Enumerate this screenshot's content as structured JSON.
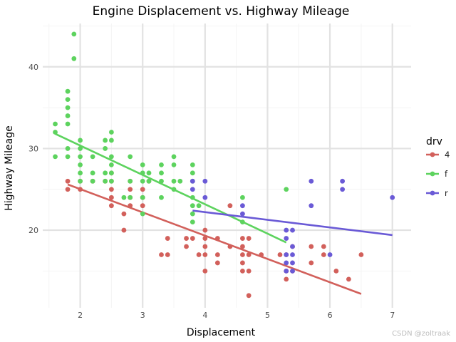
{
  "chart_data": {
    "type": "scatter",
    "title": "Engine Displacement vs. Highway Mileage",
    "xlabel": "Displacement",
    "ylabel": "Highway Mileage",
    "xlim": [
      1.4,
      7.3
    ],
    "ylim": [
      10.5,
      45.3
    ],
    "x_ticks": [
      2,
      3,
      4,
      5,
      6,
      7
    ],
    "y_ticks": [
      20,
      30,
      40
    ],
    "grid": true,
    "legend": {
      "title": "drv",
      "position": "right"
    },
    "series": [
      {
        "name": "4",
        "color": "#d2605b",
        "trend": {
          "x": [
            1.8,
            6.5
          ],
          "y": [
            25.6,
            12.2
          ]
        },
        "points": [
          [
            1.8,
            26
          ],
          [
            1.8,
            25
          ],
          [
            2.0,
            26
          ],
          [
            2.0,
            25
          ],
          [
            2.2,
            26
          ],
          [
            2.4,
            26
          ],
          [
            2.5,
            27
          ],
          [
            2.5,
            26
          ],
          [
            2.5,
            25
          ],
          [
            2.5,
            24
          ],
          [
            2.5,
            23
          ],
          [
            2.7,
            22
          ],
          [
            2.7,
            20
          ],
          [
            2.8,
            26
          ],
          [
            2.8,
            25
          ],
          [
            2.8,
            24
          ],
          [
            2.8,
            23
          ],
          [
            3.0,
            25
          ],
          [
            3.0,
            24
          ],
          [
            3.0,
            23
          ],
          [
            3.1,
            26
          ],
          [
            3.3,
            17
          ],
          [
            3.4,
            19
          ],
          [
            3.4,
            17
          ],
          [
            3.7,
            19
          ],
          [
            3.7,
            18
          ],
          [
            3.8,
            19
          ],
          [
            3.9,
            17
          ],
          [
            4.0,
            20
          ],
          [
            4.0,
            19
          ],
          [
            4.0,
            18
          ],
          [
            4.0,
            17
          ],
          [
            4.0,
            15
          ],
          [
            4.2,
            19
          ],
          [
            4.2,
            17
          ],
          [
            4.2,
            16
          ],
          [
            4.4,
            23
          ],
          [
            4.4,
            18
          ],
          [
            4.6,
            19
          ],
          [
            4.6,
            18
          ],
          [
            4.6,
            17
          ],
          [
            4.6,
            16
          ],
          [
            4.6,
            15
          ],
          [
            4.7,
            19
          ],
          [
            4.7,
            17
          ],
          [
            4.7,
            15
          ],
          [
            4.7,
            12
          ],
          [
            4.9,
            17
          ],
          [
            5.2,
            17
          ],
          [
            5.3,
            17
          ],
          [
            5.3,
            15
          ],
          [
            5.3,
            14
          ],
          [
            5.4,
            18
          ],
          [
            5.4,
            15
          ],
          [
            5.7,
            18
          ],
          [
            5.7,
            16
          ],
          [
            5.9,
            18
          ],
          [
            5.9,
            17
          ],
          [
            6.1,
            15
          ],
          [
            6.3,
            14
          ],
          [
            6.5,
            17
          ]
        ]
      },
      {
        "name": "f",
        "color": "#5dd35e",
        "trend": {
          "x": [
            1.6,
            5.3
          ],
          "y": [
            31.8,
            18.5
          ]
        },
        "points": [
          [
            1.6,
            33
          ],
          [
            1.6,
            32
          ],
          [
            1.6,
            29
          ],
          [
            1.8,
            37
          ],
          [
            1.8,
            36
          ],
          [
            1.8,
            35
          ],
          [
            1.8,
            34
          ],
          [
            1.8,
            33
          ],
          [
            1.8,
            30
          ],
          [
            1.8,
            29
          ],
          [
            1.9,
            44
          ],
          [
            1.9,
            41
          ],
          [
            2.0,
            31
          ],
          [
            2.0,
            30
          ],
          [
            2.0,
            29
          ],
          [
            2.0,
            28
          ],
          [
            2.0,
            27
          ],
          [
            2.0,
            26
          ],
          [
            2.2,
            29
          ],
          [
            2.2,
            27
          ],
          [
            2.2,
            26
          ],
          [
            2.4,
            31
          ],
          [
            2.4,
            30
          ],
          [
            2.4,
            27
          ],
          [
            2.4,
            26
          ],
          [
            2.5,
            32
          ],
          [
            2.5,
            31
          ],
          [
            2.5,
            29
          ],
          [
            2.5,
            28
          ],
          [
            2.5,
            27
          ],
          [
            2.5,
            26
          ],
          [
            2.7,
            24
          ],
          [
            2.8,
            29
          ],
          [
            2.8,
            26
          ],
          [
            2.8,
            24
          ],
          [
            3.0,
            28
          ],
          [
            3.0,
            27
          ],
          [
            3.0,
            26
          ],
          [
            3.0,
            24
          ],
          [
            3.0,
            22
          ],
          [
            3.1,
            27
          ],
          [
            3.1,
            26
          ],
          [
            3.3,
            28
          ],
          [
            3.3,
            27
          ],
          [
            3.3,
            26
          ],
          [
            3.3,
            24
          ],
          [
            3.5,
            29
          ],
          [
            3.5,
            28
          ],
          [
            3.5,
            26
          ],
          [
            3.5,
            25
          ],
          [
            3.6,
            26
          ],
          [
            3.8,
            28
          ],
          [
            3.8,
            27
          ],
          [
            3.8,
            26
          ],
          [
            3.8,
            24
          ],
          [
            3.8,
            23
          ],
          [
            3.8,
            22
          ],
          [
            3.8,
            21
          ],
          [
            3.9,
            23
          ],
          [
            4.6,
            24
          ],
          [
            4.6,
            21
          ],
          [
            5.3,
            25
          ]
        ]
      },
      {
        "name": "r",
        "color": "#6a5ad6",
        "trend": {
          "x": [
            3.8,
            7.0
          ],
          "y": [
            22.4,
            19.4
          ]
        },
        "points": [
          [
            3.8,
            26
          ],
          [
            3.8,
            25
          ],
          [
            4.0,
            26
          ],
          [
            4.0,
            24
          ],
          [
            4.6,
            23
          ],
          [
            4.6,
            22
          ],
          [
            5.3,
            20
          ],
          [
            5.3,
            19
          ],
          [
            5.3,
            17
          ],
          [
            5.3,
            16
          ],
          [
            5.3,
            15
          ],
          [
            5.4,
            20
          ],
          [
            5.4,
            18
          ],
          [
            5.4,
            17
          ],
          [
            5.4,
            16
          ],
          [
            5.4,
            15
          ],
          [
            5.7,
            26
          ],
          [
            5.7,
            23
          ],
          [
            6.0,
            17
          ],
          [
            6.2,
            26
          ],
          [
            6.2,
            25
          ],
          [
            7.0,
            24
          ]
        ]
      }
    ]
  },
  "watermark": "CSDN @zoltraak"
}
